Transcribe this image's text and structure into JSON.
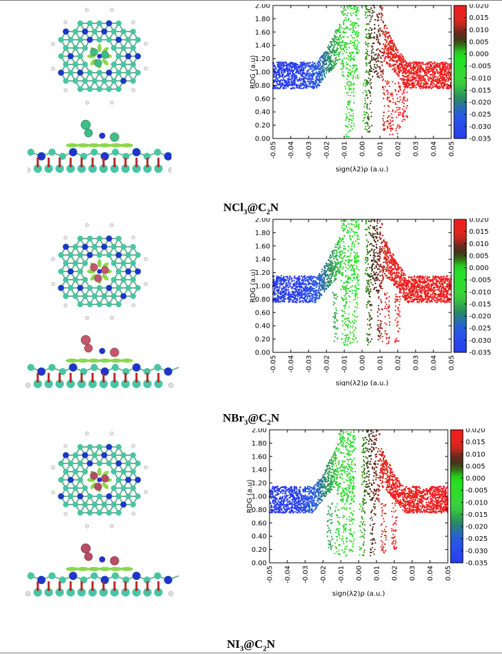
{
  "panels": [
    {
      "caption": {
        "pre": "NCl",
        "n1": "3",
        "mid": "@C",
        "n2": "2",
        "post": "N"
      },
      "halogen_color": "#3dbd85"
    },
    {
      "caption": {
        "pre": "NBr",
        "n1": "3",
        "mid": "@C",
        "n2": "2",
        "post": "N"
      },
      "halogen_color": "#c4576a"
    },
    {
      "caption": {
        "pre": "NI",
        "n1": "3",
        "mid": "@C",
        "n2": "2",
        "post": "N"
      },
      "halogen_color": "#b84a64"
    }
  ],
  "chart_data": [
    {
      "type": "scatter",
      "xlabel": "sign(λ2)ρ (a.u.)",
      "ylabel": "RDG (a.u)",
      "xlim": [
        -0.05,
        0.05
      ],
      "ylim": [
        0,
        2.0
      ],
      "xticks": [
        "-0.05",
        "-0.04",
        "-0.03",
        "-0.02",
        "-0.01",
        "0.00",
        "0.01",
        "0.02",
        "0.03",
        "0.04",
        "0.05"
      ],
      "yticks": [
        "0.00",
        "0.20",
        "0.40",
        "0.60",
        "0.80",
        "1.00",
        "1.20",
        "1.40",
        "1.60",
        "1.80",
        "2.00"
      ],
      "colorbar_ticks": [
        "0.020",
        "0.015",
        "0.010",
        "0.005",
        "0.000",
        "-0.005",
        "-0.010",
        "-0.015",
        "-0.020",
        "-0.025",
        "-0.030",
        "-0.035"
      ],
      "colorbar_range": [
        -0.035,
        0.02
      ],
      "spikes": [
        {
          "x": -0.008,
          "y": 0.02
        },
        {
          "x": -0.006,
          "y": 0.05
        },
        {
          "x": 0.002,
          "y": 0.05
        },
        {
          "x": 0.004,
          "y": 0.08
        },
        {
          "x": 0.013,
          "y": 0.12
        },
        {
          "x": 0.016,
          "y": 0.05
        },
        {
          "x": 0.02,
          "y": 0.05
        },
        {
          "x": 0.024,
          "y": 0.25
        }
      ]
    },
    {
      "type": "scatter",
      "xlabel": "sign(λ2)ρ (a.u.)",
      "ylabel": "RDG (a.u)",
      "xlim": [
        -0.05,
        0.05
      ],
      "ylim": [
        0,
        2.0
      ],
      "xticks": [
        "-0.05",
        "-0.04",
        "-0.03",
        "-0.02",
        "-0.01",
        "0.00",
        "0.01",
        "0.02",
        "0.03",
        "0.04",
        "0.05"
      ],
      "yticks": [
        "0.00",
        "0.20",
        "0.40",
        "0.60",
        "0.80",
        "1.00",
        "1.20",
        "1.40",
        "1.60",
        "1.80",
        "2.00"
      ],
      "colorbar_ticks": [
        "0.020",
        "0.015",
        "0.010",
        "0.005",
        "0.000",
        "-0.005",
        "-0.010",
        "-0.015",
        "-0.020",
        "-0.025",
        "-0.030",
        "-0.035"
      ],
      "colorbar_range": [
        -0.035,
        0.02
      ],
      "spikes": [
        {
          "x": -0.015,
          "y": 0.15
        },
        {
          "x": -0.01,
          "y": 0.1
        },
        {
          "x": -0.008,
          "y": 0.12
        },
        {
          "x": -0.004,
          "y": 0.15
        },
        {
          "x": 0.004,
          "y": 0.1
        },
        {
          "x": 0.01,
          "y": 0.1
        },
        {
          "x": 0.014,
          "y": 0.12
        },
        {
          "x": 0.02,
          "y": 0.15
        }
      ]
    },
    {
      "type": "scatter",
      "xlabel": "sign(λ2)ρ (a.u.)",
      "ylabel": "RDG (a.u)",
      "xlim": [
        -0.05,
        0.05
      ],
      "ylim": [
        0,
        2.0
      ],
      "xticks": [
        "-0.05",
        "-0.04",
        "-0.03",
        "-0.02",
        "-0.01",
        "0.00",
        "0.01",
        "0.02",
        "0.03",
        "0.04",
        "0.05"
      ],
      "yticks": [
        "0.00",
        "0.20",
        "0.40",
        "0.60",
        "0.80",
        "1.00",
        "1.20",
        "1.40",
        "1.60",
        "1.80",
        "2.00"
      ],
      "colorbar_ticks": [
        "0.020",
        "0.015",
        "0.010",
        "0.005",
        "0.000",
        "-0.005",
        "-0.010",
        "-0.015",
        "-0.020",
        "-0.025",
        "-0.030",
        "-0.035"
      ],
      "colorbar_range": [
        -0.035,
        0.02
      ],
      "spikes": [
        {
          "x": -0.016,
          "y": 0.2
        },
        {
          "x": -0.012,
          "y": 0.1
        },
        {
          "x": -0.008,
          "y": 0.1
        },
        {
          "x": -0.004,
          "y": 0.15
        },
        {
          "x": 0.002,
          "y": 0.1
        },
        {
          "x": 0.008,
          "y": 0.1
        },
        {
          "x": 0.014,
          "y": 0.15
        },
        {
          "x": 0.02,
          "y": 0.2
        }
      ]
    }
  ]
}
